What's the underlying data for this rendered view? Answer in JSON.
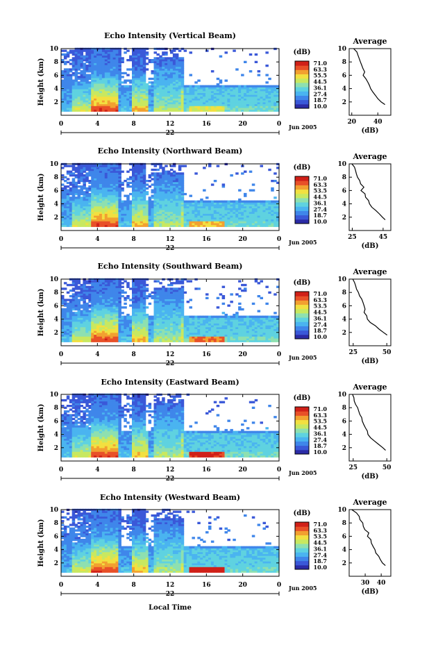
{
  "figure": {
    "xlabel_bottom": "Local Time",
    "colorscale": [
      "#2b2ba6",
      "#3a58d8",
      "#3f86ea",
      "#4ab4f0",
      "#5fd2e0",
      "#8ee0b0",
      "#c8e860",
      "#f2e040",
      "#f2a030",
      "#e85028",
      "#d02018"
    ]
  },
  "chart_data": [
    {
      "type": "heatmap",
      "title": "Echo Intensity (Vertical Beam)",
      "ylabel": "Height (km)",
      "ylim": [
        0,
        10
      ],
      "xlim": [
        0,
        24
      ],
      "x_ticks": [
        "0",
        "4",
        "8",
        "12",
        "16",
        "20",
        "0"
      ],
      "y_ticks": [
        "2",
        "4",
        "6",
        "8",
        "10"
      ],
      "date_center": "22",
      "date_right": "Jun 2005",
      "colorbar": {
        "unit": "(dB)",
        "labels": [
          "71.0",
          "63.3",
          "55.5",
          "44.5",
          "36.1",
          "27.4",
          "18.7",
          "10.0"
        ]
      },
      "profile": {
        "title": "Average",
        "xlabel": "(dB)",
        "x_ticks": [
          "20",
          "40"
        ],
        "xlim": [
          18,
          50
        ],
        "x": [
          22,
          24,
          25,
          26,
          27,
          28,
          29,
          30,
          29,
          31,
          32,
          33,
          34,
          36,
          38,
          40,
          43,
          46
        ],
        "y": [
          10,
          9.5,
          9,
          8.5,
          8,
          7.5,
          7,
          6.5,
          6,
          5.5,
          5,
          4.5,
          4,
          3.5,
          3,
          2.5,
          2,
          1.6
        ]
      }
    },
    {
      "type": "heatmap",
      "title": "Echo Intensity (Northward Beam)",
      "ylabel": "Height (km)",
      "ylim": [
        0,
        10
      ],
      "xlim": [
        0,
        24
      ],
      "x_ticks": [
        "0",
        "4",
        "8",
        "12",
        "16",
        "20",
        "0"
      ],
      "y_ticks": [
        "2",
        "4",
        "6",
        "8",
        "10"
      ],
      "date_center": "22",
      "date_right": "Jun 2005",
      "colorbar": {
        "unit": "(dB)",
        "labels": [
          "71.0",
          "63.3",
          "53.5",
          "44.5",
          "36.1",
          "27.4",
          "18.7",
          "10.0"
        ]
      },
      "profile": {
        "title": "Average",
        "xlabel": "(dB)",
        "x_ticks": [
          "25",
          "45"
        ],
        "xlim": [
          23,
          50
        ],
        "x": [
          25,
          26,
          27,
          28,
          29,
          30,
          31,
          32,
          31,
          33,
          34,
          35,
          36,
          38,
          40,
          42,
          44,
          46
        ],
        "y": [
          10,
          9.5,
          9,
          8.5,
          8,
          7.5,
          7,
          6.5,
          6,
          5.5,
          5,
          4.5,
          4,
          3.5,
          3,
          2.5,
          2,
          1.6
        ]
      }
    },
    {
      "type": "heatmap",
      "title": "Echo Intensity (Southward Beam)",
      "ylabel": "Height (km)",
      "ylim": [
        0,
        10
      ],
      "xlim": [
        0,
        24
      ],
      "x_ticks": [
        "0",
        "4",
        "8",
        "12",
        "16",
        "20",
        "0"
      ],
      "y_ticks": [
        "2",
        "4",
        "6",
        "8",
        "10"
      ],
      "date_center": "22",
      "date_right": "Jun 2005",
      "colorbar": {
        "unit": "(dB)",
        "labels": [
          "71.0",
          "63.3",
          "53.5",
          "44.5",
          "36.1",
          "27.4",
          "18.7",
          "10.0"
        ]
      },
      "profile": {
        "title": "Average",
        "xlabel": "(dB)",
        "x_ticks": [
          "25",
          "50"
        ],
        "xlim": [
          22,
          53
        ],
        "x": [
          25,
          26,
          27,
          28,
          29,
          30,
          31,
          32,
          33,
          34,
          33,
          35,
          36,
          38,
          41,
          44,
          47,
          50
        ],
        "y": [
          10,
          9.5,
          9,
          8.5,
          8,
          7.5,
          7,
          6.5,
          6,
          5.5,
          5,
          4.5,
          4,
          3.5,
          3,
          2.5,
          2,
          1.6
        ]
      }
    },
    {
      "type": "heatmap",
      "title": "Echo Intensity (Eastward Beam)",
      "ylabel": "Height (km)",
      "ylim": [
        0,
        10
      ],
      "xlim": [
        0,
        24
      ],
      "x_ticks": [
        "0",
        "4",
        "8",
        "12",
        "16",
        "20",
        "0"
      ],
      "y_ticks": [
        "2",
        "4",
        "6",
        "8",
        "10"
      ],
      "date_center": "22",
      "date_right": "Jun 2005",
      "colorbar": {
        "unit": "(dB)",
        "labels": [
          "71.0",
          "63.3",
          "53.5",
          "44.5",
          "36.1",
          "27.4",
          "18.7",
          "10.0"
        ]
      },
      "profile": {
        "title": "Average",
        "xlabel": "(dB)",
        "x_ticks": [
          "25",
          "50"
        ],
        "xlim": [
          22,
          53
        ],
        "x": [
          24,
          25,
          26,
          27,
          28,
          29,
          30,
          31,
          32,
          33,
          34,
          35,
          36,
          38,
          41,
          44,
          47,
          49
        ],
        "y": [
          10,
          9.5,
          9,
          8.5,
          8,
          7.5,
          7,
          6.5,
          6,
          5.5,
          5,
          4.5,
          4,
          3.5,
          3,
          2.5,
          2,
          1.6
        ]
      }
    },
    {
      "type": "heatmap",
      "title": "Echo Intensity (Westward Beam)",
      "ylabel": "Height (km)",
      "ylim": [
        0,
        10
      ],
      "xlim": [
        0,
        24
      ],
      "x_ticks": [
        "0",
        "4",
        "8",
        "12",
        "16",
        "20",
        "0"
      ],
      "y_ticks": [
        "2",
        "4",
        "6",
        "8",
        "10"
      ],
      "date_center": "22",
      "date_right": "Jun 2005",
      "colorbar": {
        "unit": "(dB)",
        "labels": [
          "71.0",
          "63.3",
          "53.5",
          "44.5",
          "36.1",
          "27.4",
          "18.7",
          "10.0"
        ]
      },
      "profile": {
        "title": "Average",
        "xlabel": "(dB)",
        "x_ticks": [
          "30",
          "40"
        ],
        "xlim": [
          20,
          46
        ],
        "x": [
          22,
          24,
          26,
          27,
          28,
          29,
          30,
          32,
          31,
          33,
          34,
          35,
          36,
          37,
          38,
          40,
          41,
          43
        ],
        "y": [
          10,
          9.5,
          9,
          8.5,
          8,
          7.5,
          7,
          6.5,
          6,
          5.5,
          5,
          4.5,
          4,
          3.5,
          3,
          2.5,
          2,
          1.6
        ]
      }
    }
  ]
}
